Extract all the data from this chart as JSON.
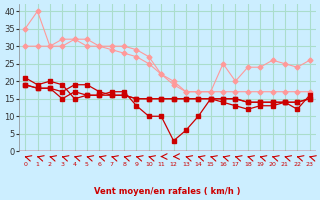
{
  "xlabel": "Vent moyen/en rafales ( km/h )",
  "bg_color": "#cceeff",
  "grid_color": "#aaddcc",
  "x": [
    0,
    1,
    2,
    3,
    4,
    5,
    6,
    7,
    8,
    9,
    10,
    11,
    12,
    13,
    14,
    15,
    16,
    17,
    18,
    19,
    20,
    21,
    22,
    23
  ],
  "line1": [
    35,
    40,
    30,
    30,
    32,
    32,
    30,
    30,
    30,
    29,
    27,
    22,
    20,
    17,
    17,
    17,
    25,
    20,
    24,
    24,
    26,
    25,
    24,
    26
  ],
  "line2": [
    30,
    30,
    30,
    32,
    32,
    30,
    30,
    29,
    28,
    27,
    25,
    22,
    19,
    17,
    17,
    17,
    17,
    17,
    17,
    17,
    17,
    17,
    17,
    17
  ],
  "line3": [
    21,
    19,
    20,
    19,
    15,
    16,
    16,
    17,
    17,
    13,
    10,
    10,
    3,
    6,
    10,
    15,
    14,
    13,
    12,
    13,
    13,
    14,
    12,
    16
  ],
  "line4": [
    19,
    18,
    18,
    15,
    17,
    16,
    16,
    16,
    16,
    15,
    15,
    15,
    15,
    15,
    15,
    15,
    15,
    15,
    14,
    14,
    14,
    14,
    14,
    15
  ],
  "line5": [
    19,
    18,
    18,
    17,
    19,
    19,
    17,
    16,
    16,
    15,
    15,
    15,
    15,
    15,
    15,
    15,
    15,
    15,
    14,
    14,
    14,
    14,
    14,
    15
  ],
  "color_light": "#ff9999",
  "color_dark": "#cc0000",
  "ylim": [
    0,
    42
  ],
  "yticks": [
    0,
    5,
    10,
    15,
    20,
    25,
    30,
    35,
    40
  ],
  "xticks": [
    0,
    1,
    2,
    3,
    4,
    5,
    6,
    7,
    8,
    9,
    10,
    11,
    12,
    13,
    14,
    15,
    16,
    17,
    18,
    19,
    20,
    21,
    22,
    23
  ],
  "wind_arrows": [
    0,
    1,
    2,
    3,
    4,
    5,
    6,
    7,
    8,
    9,
    10,
    11,
    12,
    13,
    14,
    15,
    16,
    17,
    18,
    19,
    20,
    21,
    22,
    23
  ],
  "arrow_angles": [
    225,
    225,
    225,
    225,
    225,
    225,
    225,
    225,
    225,
    225,
    225,
    270,
    270,
    225,
    225,
    225,
    225,
    225,
    225,
    225,
    225,
    225,
    225,
    225
  ]
}
